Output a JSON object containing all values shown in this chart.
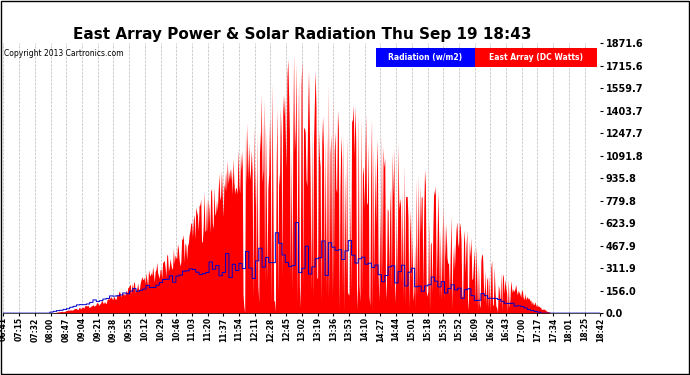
{
  "title": "East Array Power & Solar Radiation Thu Sep 19 18:43",
  "copyright": "Copyright 2013 Cartronics.com",
  "legend_radiation": "Radiation (w/m2)",
  "legend_east_array": "East Array (DC Watts)",
  "ylabel_values": [
    0.0,
    156.0,
    311.9,
    467.9,
    623.9,
    779.8,
    935.8,
    1091.8,
    1247.7,
    1403.7,
    1559.7,
    1715.6,
    1871.6
  ],
  "ymax": 1871.6,
  "ymin": 0.0,
  "bg_color": "#ffffff",
  "plot_bg_color": "#ffffff",
  "grid_color": "#bbbbbb",
  "red_color": "#ff0000",
  "blue_color": "#0000cc",
  "title_fontsize": 11,
  "tick_fontsize": 7,
  "x_labels": [
    "06:41",
    "07:15",
    "07:32",
    "08:00",
    "08:47",
    "09:04",
    "09:21",
    "09:38",
    "09:55",
    "10:12",
    "10:29",
    "10:46",
    "11:03",
    "11:20",
    "11:37",
    "11:54",
    "12:11",
    "12:28",
    "12:45",
    "13:02",
    "13:19",
    "13:36",
    "13:53",
    "14:10",
    "14:27",
    "14:44",
    "15:01",
    "15:18",
    "15:35",
    "15:52",
    "16:09",
    "16:26",
    "16:43",
    "17:00",
    "17:17",
    "17:34",
    "18:01",
    "18:25",
    "18:42"
  ]
}
